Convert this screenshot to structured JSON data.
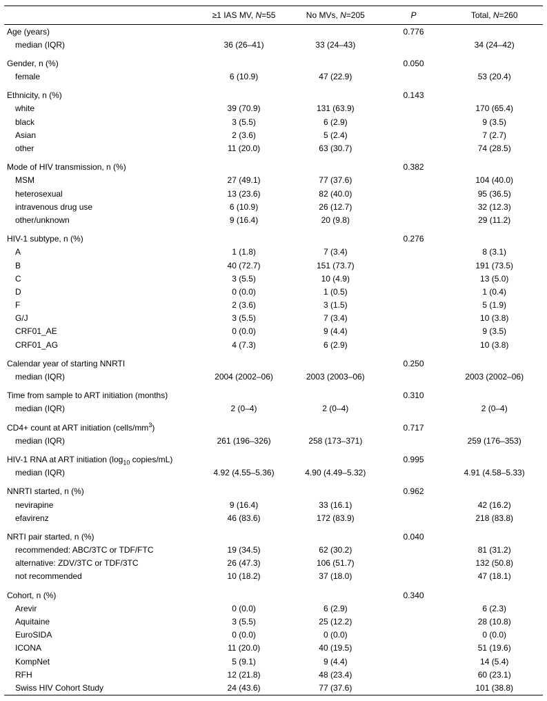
{
  "columns": {
    "c0": "",
    "c1": "≥1 IAS MV, N=55",
    "c2": "No MVs, N=205",
    "c3": "P",
    "c4": "Total, N=260"
  },
  "col_widths": {
    "c0": "36%",
    "c1": "17%",
    "c2": "17%",
    "c3": "12%",
    "c4": "18%"
  },
  "sections": [
    {
      "header": {
        "label": "Age (years)",
        "p": "0.776"
      },
      "rows": [
        {
          "label": "median (IQR)",
          "c1": "36 (26–41)",
          "c2": "33 (24–43)",
          "c4": "34 (24–42)"
        }
      ]
    },
    {
      "header": {
        "label": "Gender, n (%)",
        "p": "0.050"
      },
      "rows": [
        {
          "label": "female",
          "c1": "6 (10.9)",
          "c2": "47 (22.9)",
          "c4": "53 (20.4)"
        }
      ]
    },
    {
      "header": {
        "label": "Ethnicity, n (%)",
        "p": "0.143"
      },
      "rows": [
        {
          "label": "white",
          "c1": "39 (70.9)",
          "c2": "131 (63.9)",
          "c4": "170 (65.4)"
        },
        {
          "label": "black",
          "c1": "3 (5.5)",
          "c2": "6 (2.9)",
          "c4": "9 (3.5)"
        },
        {
          "label": "Asian",
          "c1": "2 (3.6)",
          "c2": "5 (2.4)",
          "c4": "7 (2.7)"
        },
        {
          "label": "other",
          "c1": "11 (20.0)",
          "c2": "63 (30.7)",
          "c4": "74 (28.5)"
        }
      ]
    },
    {
      "header": {
        "label": "Mode of HIV transmission, n (%)",
        "p": "0.382"
      },
      "rows": [
        {
          "label": "MSM",
          "c1": "27 (49.1)",
          "c2": "77 (37.6)",
          "c4": "104 (40.0)"
        },
        {
          "label": "heterosexual",
          "c1": "13 (23.6)",
          "c2": "82 (40.0)",
          "c4": "95 (36.5)"
        },
        {
          "label": "intravenous drug use",
          "c1": "6 (10.9)",
          "c2": "26 (12.7)",
          "c4": "32 (12.3)"
        },
        {
          "label": "other/unknown",
          "c1": "9 (16.4)",
          "c2": "20 (9.8)",
          "c4": "29 (11.2)"
        }
      ]
    },
    {
      "header": {
        "label": "HIV-1 subtype, n (%)",
        "p": "0.276"
      },
      "rows": [
        {
          "label": "A",
          "c1": "1 (1.8)",
          "c2": "7 (3.4)",
          "c4": "8 (3.1)"
        },
        {
          "label": "B",
          "c1": "40 (72.7)",
          "c2": "151 (73.7)",
          "c4": "191 (73.5)"
        },
        {
          "label": "C",
          "c1": "3 (5.5)",
          "c2": "10 (4.9)",
          "c4": "13 (5.0)"
        },
        {
          "label": "D",
          "c1": "0 (0.0)",
          "c2": "1 (0.5)",
          "c4": "1 (0.4)"
        },
        {
          "label": "F",
          "c1": "2 (3.6)",
          "c2": "3 (1.5)",
          "c4": "5 (1.9)"
        },
        {
          "label": "G/J",
          "c1": "3 (5.5)",
          "c2": "7 (3.4)",
          "c4": "10 (3.8)"
        },
        {
          "label": "CRF01_AE",
          "c1": "0 (0.0)",
          "c2": "9 (4.4)",
          "c4": "9 (3.5)"
        },
        {
          "label": "CRF01_AG",
          "c1": "4 (7.3)",
          "c2": "6 (2.9)",
          "c4": "10 (3.8)"
        }
      ]
    },
    {
      "header": {
        "label": "Calendar year of starting NNRTI",
        "p": "0.250"
      },
      "rows": [
        {
          "label": "median (IQR)",
          "c1": "2004 (2002–06)",
          "c2": "2003 (2003–06)",
          "c4": "2003 (2002–06)"
        }
      ]
    },
    {
      "header": {
        "label": "Time from sample to ART initiation (months)",
        "p": "0.310"
      },
      "rows": [
        {
          "label": "median (IQR)",
          "c1": "2 (0–4)",
          "c2": "2 (0–4)",
          "c4": "2 (0–4)"
        }
      ]
    },
    {
      "header": {
        "label_html": "CD4+ count at ART initiation (cells/mm<sup>3</sup>)",
        "p": "0.717"
      },
      "rows": [
        {
          "label": "median (IQR)",
          "c1": "261 (196–326)",
          "c2": "258 (173–371)",
          "c4": "259 (176–353)"
        }
      ]
    },
    {
      "header": {
        "label_html": "HIV-1 RNA at ART initiation (log<sub>10</sub> copies/mL)",
        "p": "0.995"
      },
      "rows": [
        {
          "label": "median (IQR)",
          "c1": "4.92 (4.55–5.36)",
          "c2": "4.90 (4.49–5.32)",
          "c4": "4.91 (4.58–5.33)"
        }
      ]
    },
    {
      "header": {
        "label": "NNRTI started, n (%)",
        "p": "0.962"
      },
      "rows": [
        {
          "label": "nevirapine",
          "c1": "9 (16.4)",
          "c2": "33 (16.1)",
          "c4": "42 (16.2)"
        },
        {
          "label": "efavirenz",
          "c1": "46 (83.6)",
          "c2": "172 (83.9)",
          "c4": "218 (83.8)"
        }
      ]
    },
    {
      "header": {
        "label": "NRTI pair started, n (%)",
        "p": "0.040"
      },
      "rows": [
        {
          "label": "recommended: ABC/3TC or TDF/FTC",
          "c1": "19 (34.5)",
          "c2": "62 (30.2)",
          "c4": "81 (31.2)"
        },
        {
          "label": "alternative: ZDV/3TC or TDF/3TC",
          "c1": "26 (47.3)",
          "c2": "106 (51.7)",
          "c4": "132 (50.8)"
        },
        {
          "label": "not recommended",
          "c1": "10 (18.2)",
          "c2": "37 (18.0)",
          "c4": "47 (18.1)"
        }
      ]
    },
    {
      "header": {
        "label": "Cohort, n (%)",
        "p": "0.340"
      },
      "rows": [
        {
          "label": "Arevir",
          "c1": "0 (0.0)",
          "c2": "6 (2.9)",
          "c4": "6 (2.3)"
        },
        {
          "label": "Aquitaine",
          "c1": "3 (5.5)",
          "c2": "25 (12.2)",
          "c4": "28 (10.8)"
        },
        {
          "label": "EuroSIDA",
          "c1": "0 (0.0)",
          "c2": "0 (0.0)",
          "c4": "0 (0.0)"
        },
        {
          "label": "ICONA",
          "c1": "11 (20.0)",
          "c2": "40 (19.5)",
          "c4": "51 (19.6)"
        },
        {
          "label": "KompNet",
          "c1": "5 (9.1)",
          "c2": "9 (4.4)",
          "c4": "14 (5.4)"
        },
        {
          "label": "RFH",
          "c1": "12 (21.8)",
          "c2": "48 (23.4)",
          "c4": "60 (23.1)"
        },
        {
          "label": "Swiss HIV Cohort Study",
          "c1": "24 (43.6)",
          "c2": "77 (37.6)",
          "c4": "101 (38.8)"
        }
      ]
    }
  ]
}
